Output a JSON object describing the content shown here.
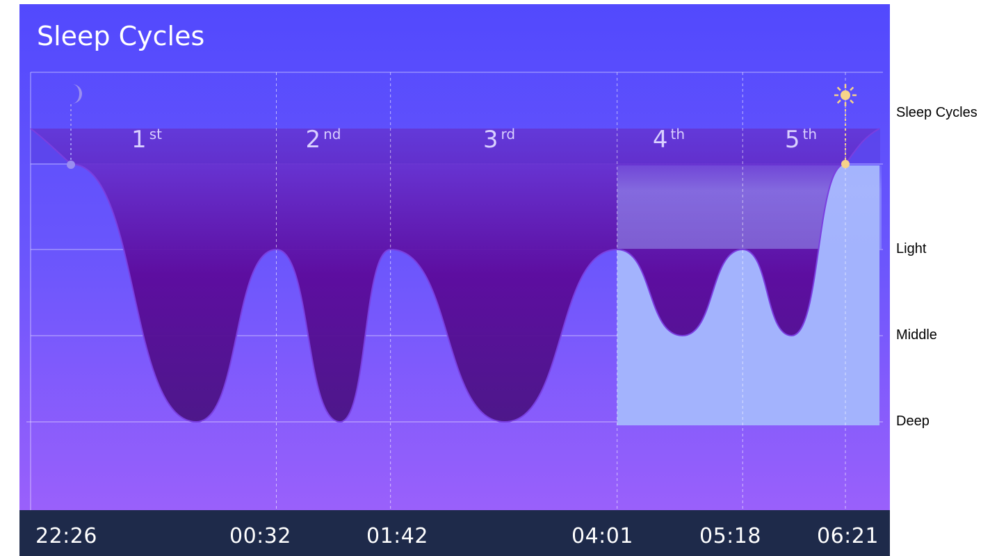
{
  "chart_data": {
    "type": "area",
    "title": "Sleep Cycles",
    "cycles": [
      "1st",
      "2nd",
      "3rd",
      "4th",
      "5th"
    ],
    "cycle_ordinals": [
      {
        "num": "1",
        "sup": "st"
      },
      {
        "num": "2",
        "sup": "nd"
      },
      {
        "num": "3",
        "sup": "rd"
      },
      {
        "num": "4",
        "sup": "th"
      },
      {
        "num": "5",
        "sup": "th"
      }
    ],
    "x_ticks": [
      "22:26",
      "00:32",
      "01:42",
      "04:01",
      "05:18",
      "06:21"
    ],
    "y_levels": [
      "Sleep Cycles",
      "Light",
      "Middle",
      "Deep"
    ],
    "curve_points": [
      {
        "time": "22:26",
        "stage": "Awake"
      },
      {
        "time": "23:43",
        "stage": "Deep"
      },
      {
        "time": "00:32",
        "stage": "Light"
      },
      {
        "time": "01:11",
        "stage": "Deep"
      },
      {
        "time": "01:42",
        "stage": "Light"
      },
      {
        "time": "02:52",
        "stage": "Deep"
      },
      {
        "time": "04:01",
        "stage": "Light"
      },
      {
        "time": "04:41",
        "stage": "Middle"
      },
      {
        "time": "05:18",
        "stage": "Light"
      },
      {
        "time": "05:48",
        "stage": "Middle"
      },
      {
        "time": "06:21",
        "stage": "Awake"
      }
    ],
    "highlight_range": [
      "04:01",
      "06:21"
    ],
    "markers": {
      "start_icon": "moon-icon",
      "end_icon": "sun-icon"
    },
    "grid": true,
    "colors": {
      "background_top": "#5249fd",
      "background_bottom": "#9a60fb",
      "fill_dark": "#5a0a9a",
      "highlight": "#a3b3fd",
      "sun": "#f6d38a",
      "moon": "#9a8ef0",
      "time_bar": "#1e2a4a"
    }
  }
}
